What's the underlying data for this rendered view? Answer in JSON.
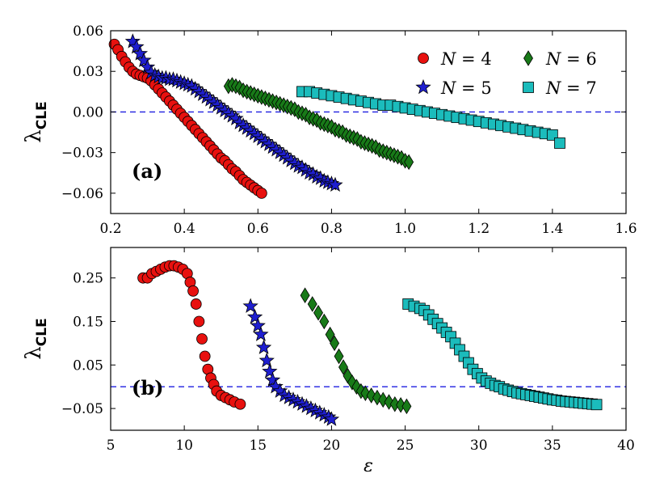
{
  "chart_data": [
    {
      "type": "scatter",
      "panel_label": "(a)",
      "ylabel": "λ",
      "ylabel_sub": "CLE",
      "xlim": [
        0.2,
        1.6
      ],
      "ylim": [
        -0.075,
        0.06
      ],
      "xticks": [
        0.2,
        0.4,
        0.6,
        0.8,
        1.0,
        1.2,
        1.4,
        1.6
      ],
      "xtick_labels": [
        "0.2",
        "0.4",
        "0.6",
        "0.8",
        "1.0",
        "1.2",
        "1.4",
        "1.6"
      ],
      "yticks": [
        0.06,
        0.03,
        0.0,
        -0.03,
        -0.06
      ],
      "ytick_labels": [
        "0.06",
        "0.03",
        "0.00",
        "−0.03",
        "−0.06"
      ],
      "reference_line_y": 0.0,
      "legend": {
        "placement": "top-right",
        "entries": [
          {
            "prefix": "N",
            "suffix": " = 4"
          },
          {
            "prefix": "N",
            "suffix": " = 6"
          },
          {
            "prefix": "N",
            "suffix": " = 5"
          },
          {
            "prefix": "N",
            "suffix": " = 7"
          }
        ]
      },
      "series": [
        {
          "name": "N = 4",
          "marker": "circle",
          "color": "#e8110f",
          "x": [
            0.21,
            0.22,
            0.23,
            0.24,
            0.25,
            0.26,
            0.27,
            0.28,
            0.29,
            0.3,
            0.31,
            0.32,
            0.33,
            0.34,
            0.35,
            0.36,
            0.37,
            0.38,
            0.39,
            0.4,
            0.41,
            0.42,
            0.43,
            0.44,
            0.45,
            0.46,
            0.47,
            0.48,
            0.49,
            0.5,
            0.51,
            0.52,
            0.53,
            0.54,
            0.55,
            0.56,
            0.57,
            0.58,
            0.59,
            0.6,
            0.61
          ],
          "y": [
            0.05,
            0.046,
            0.041,
            0.037,
            0.033,
            0.03,
            0.028,
            0.027,
            0.026,
            0.025,
            0.023,
            0.02,
            0.017,
            0.014,
            0.011,
            0.008,
            0.005,
            0.002,
            -0.001,
            -0.004,
            -0.007,
            -0.01,
            -0.013,
            -0.016,
            -0.019,
            -0.022,
            -0.025,
            -0.028,
            -0.031,
            -0.034,
            -0.036,
            -0.039,
            -0.042,
            -0.044,
            -0.047,
            -0.05,
            -0.052,
            -0.054,
            -0.056,
            -0.058,
            -0.06
          ]
        },
        {
          "name": "N = 5",
          "marker": "star",
          "color": "#1f1fcf",
          "x": [
            0.26,
            0.27,
            0.28,
            0.29,
            0.3,
            0.31,
            0.32,
            0.33,
            0.34,
            0.35,
            0.36,
            0.37,
            0.38,
            0.39,
            0.4,
            0.41,
            0.42,
            0.43,
            0.44,
            0.45,
            0.46,
            0.47,
            0.48,
            0.49,
            0.5,
            0.51,
            0.52,
            0.53,
            0.54,
            0.55,
            0.56,
            0.57,
            0.58,
            0.59,
            0.6,
            0.61,
            0.62,
            0.63,
            0.64,
            0.65,
            0.66,
            0.67,
            0.68,
            0.69,
            0.7,
            0.71,
            0.72,
            0.73,
            0.74,
            0.75,
            0.76,
            0.77,
            0.78,
            0.79,
            0.8,
            0.81
          ],
          "y": [
            0.052,
            0.048,
            0.043,
            0.038,
            0.033,
            0.029,
            0.027,
            0.026,
            0.025,
            0.025,
            0.024,
            0.024,
            0.023,
            0.022,
            0.021,
            0.02,
            0.019,
            0.017,
            0.015,
            0.013,
            0.011,
            0.009,
            0.007,
            0.005,
            0.003,
            0.001,
            -0.001,
            -0.003,
            -0.005,
            -0.008,
            -0.01,
            -0.012,
            -0.014,
            -0.016,
            -0.018,
            -0.02,
            -0.022,
            -0.024,
            -0.026,
            -0.028,
            -0.03,
            -0.032,
            -0.034,
            -0.036,
            -0.038,
            -0.04,
            -0.041,
            -0.043,
            -0.045,
            -0.046,
            -0.048,
            -0.049,
            -0.051,
            -0.052,
            -0.053,
            -0.054
          ]
        },
        {
          "name": "N = 6",
          "marker": "diamond",
          "color": "#187a18",
          "x": [
            0.52,
            0.53,
            0.54,
            0.55,
            0.56,
            0.57,
            0.58,
            0.59,
            0.6,
            0.61,
            0.62,
            0.63,
            0.64,
            0.65,
            0.66,
            0.67,
            0.68,
            0.69,
            0.7,
            0.71,
            0.72,
            0.73,
            0.74,
            0.75,
            0.76,
            0.77,
            0.78,
            0.79,
            0.8,
            0.81,
            0.82,
            0.83,
            0.84,
            0.85,
            0.86,
            0.87,
            0.88,
            0.89,
            0.9,
            0.91,
            0.92,
            0.93,
            0.94,
            0.95,
            0.96,
            0.97,
            0.98,
            0.99,
            1.0,
            1.01
          ],
          "y": [
            0.019,
            0.02,
            0.019,
            0.018,
            0.016,
            0.015,
            0.014,
            0.013,
            0.012,
            0.011,
            0.01,
            0.009,
            0.008,
            0.007,
            0.006,
            0.005,
            0.004,
            0.003,
            0.002,
            0.0,
            -0.001,
            -0.002,
            -0.004,
            -0.005,
            -0.006,
            -0.008,
            -0.009,
            -0.01,
            -0.011,
            -0.013,
            -0.014,
            -0.015,
            -0.017,
            -0.018,
            -0.019,
            -0.02,
            -0.022,
            -0.023,
            -0.024,
            -0.025,
            -0.026,
            -0.028,
            -0.029,
            -0.03,
            -0.031,
            -0.032,
            -0.033,
            -0.034,
            -0.036,
            -0.037
          ]
        },
        {
          "name": "N = 7",
          "marker": "square",
          "color": "#1bbcbc",
          "x": [
            0.72,
            0.74,
            0.76,
            0.78,
            0.8,
            0.82,
            0.84,
            0.86,
            0.88,
            0.9,
            0.92,
            0.94,
            0.96,
            0.98,
            1.0,
            1.02,
            1.04,
            1.06,
            1.08,
            1.1,
            1.12,
            1.14,
            1.16,
            1.18,
            1.2,
            1.22,
            1.24,
            1.26,
            1.28,
            1.3,
            1.32,
            1.34,
            1.36,
            1.38,
            1.4,
            1.42
          ],
          "y": [
            0.015,
            0.015,
            0.014,
            0.013,
            0.012,
            0.011,
            0.01,
            0.009,
            0.008,
            0.007,
            0.006,
            0.005,
            0.005,
            0.004,
            0.003,
            0.002,
            0.001,
            0.0,
            -0.001,
            -0.002,
            -0.003,
            -0.004,
            -0.005,
            -0.006,
            -0.007,
            -0.008,
            -0.009,
            -0.01,
            -0.011,
            -0.012,
            -0.013,
            -0.014,
            -0.015,
            -0.016,
            -0.017,
            -0.023
          ]
        }
      ]
    },
    {
      "type": "scatter",
      "panel_label": "(b)",
      "ylabel": "λ",
      "ylabel_sub": "CLE",
      "xlabel": "ε",
      "xlim": [
        5,
        40
      ],
      "ylim": [
        -0.1,
        0.32
      ],
      "xticks": [
        5,
        10,
        15,
        20,
        25,
        30,
        35,
        40
      ],
      "xtick_labels": [
        "5",
        "10",
        "15",
        "20",
        "25",
        "30",
        "35",
        "40"
      ],
      "yticks": [
        0.25,
        0.15,
        0.05,
        -0.05
      ],
      "ytick_labels": [
        "0.25",
        "0.15",
        "0.05",
        "−0.05"
      ],
      "reference_line_y": 0.0,
      "series": [
        {
          "name": "N = 4",
          "marker": "circle",
          "color": "#e8110f",
          "x": [
            7.2,
            7.5,
            7.8,
            8.1,
            8.4,
            8.7,
            9.0,
            9.3,
            9.6,
            9.9,
            10.2,
            10.4,
            10.6,
            10.8,
            11.0,
            11.2,
            11.4,
            11.6,
            11.8,
            12.0,
            12.2,
            12.5,
            12.8,
            13.1,
            13.4,
            13.8
          ],
          "y": [
            0.25,
            0.25,
            0.26,
            0.265,
            0.27,
            0.275,
            0.278,
            0.278,
            0.275,
            0.27,
            0.26,
            0.24,
            0.22,
            0.19,
            0.15,
            0.11,
            0.07,
            0.04,
            0.02,
            0.005,
            -0.01,
            -0.02,
            -0.025,
            -0.03,
            -0.035,
            -0.04
          ]
        },
        {
          "name": "N = 5",
          "marker": "star",
          "color": "#1f1fcf",
          "x": [
            14.5,
            14.8,
            15.0,
            15.2,
            15.4,
            15.6,
            15.8,
            16.0,
            16.2,
            16.5,
            16.8,
            17.1,
            17.4,
            17.7,
            18.0,
            18.3,
            18.6,
            18.9,
            19.2,
            19.5,
            19.8,
            20.0
          ],
          "y": [
            0.185,
            0.16,
            0.14,
            0.12,
            0.09,
            0.06,
            0.035,
            0.015,
            0.0,
            -0.01,
            -0.02,
            -0.025,
            -0.03,
            -0.035,
            -0.04,
            -0.045,
            -0.05,
            -0.055,
            -0.06,
            -0.065,
            -0.07,
            -0.075
          ]
        },
        {
          "name": "N = 6",
          "marker": "diamond",
          "color": "#187a18",
          "x": [
            18.2,
            18.7,
            19.1,
            19.5,
            19.9,
            20.2,
            20.5,
            20.8,
            21.1,
            21.4,
            21.7,
            22.0,
            22.3,
            22.7,
            23.1,
            23.5,
            23.9,
            24.3,
            24.7,
            25.1
          ],
          "y": [
            0.21,
            0.19,
            0.17,
            0.15,
            0.12,
            0.1,
            0.07,
            0.045,
            0.025,
            0.01,
            0.0,
            -0.01,
            -0.015,
            -0.02,
            -0.025,
            -0.03,
            -0.035,
            -0.04,
            -0.042,
            -0.045
          ]
        },
        {
          "name": "N = 7",
          "marker": "square",
          "color": "#1bbcbc",
          "x": [
            25.2,
            25.6,
            26.0,
            26.3,
            26.6,
            26.9,
            27.2,
            27.5,
            27.8,
            28.1,
            28.4,
            28.7,
            29.0,
            29.3,
            29.6,
            29.9,
            30.2,
            30.5,
            30.8,
            31.1,
            31.4,
            31.7,
            32.0,
            32.3,
            32.6,
            32.9,
            33.2,
            33.5,
            33.8,
            34.1,
            34.4,
            34.7,
            35.0,
            35.3,
            35.6,
            35.9,
            36.2,
            36.5,
            36.8,
            37.1,
            37.4,
            37.7,
            38.0
          ],
          "y": [
            0.19,
            0.185,
            0.18,
            0.175,
            0.165,
            0.155,
            0.145,
            0.135,
            0.125,
            0.115,
            0.1,
            0.085,
            0.07,
            0.055,
            0.04,
            0.03,
            0.02,
            0.013,
            0.008,
            0.003,
            0.0,
            -0.005,
            -0.008,
            -0.011,
            -0.014,
            -0.016,
            -0.018,
            -0.02,
            -0.022,
            -0.024,
            -0.026,
            -0.028,
            -0.03,
            -0.031,
            -0.033,
            -0.034,
            -0.035,
            -0.036,
            -0.037,
            -0.038,
            -0.039,
            -0.04,
            -0.041
          ]
        }
      ]
    }
  ]
}
